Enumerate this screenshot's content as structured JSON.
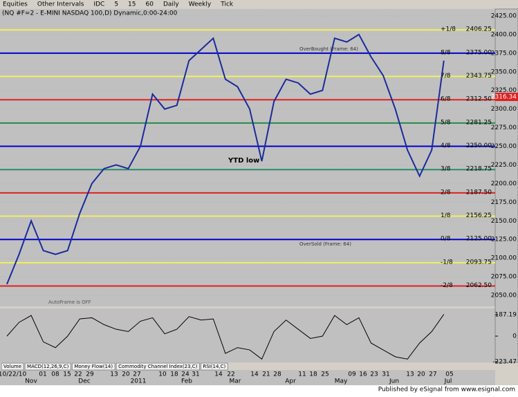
{
  "chart_data": {
    "type": "line",
    "title": "(NQ #F=2 - E-MINI NASDAQ 100,D) Dynamic,0:00-24:00",
    "toolbar": [
      "Equities",
      "Other Intervals",
      "IDC",
      "5",
      "15",
      "60",
      "Daily",
      "Weekly",
      "Tick"
    ],
    "date_labels": [
      "10/22/10",
      "01",
      "08",
      "15",
      "22",
      "29",
      "13",
      "20",
      "27",
      "10",
      "18",
      "24",
      "31",
      "14",
      "22",
      "14",
      "21",
      "28",
      "11",
      "18",
      "25",
      "09",
      "16",
      "23",
      "31",
      "13",
      "20",
      "27",
      "05"
    ],
    "month_labels": [
      "Nov",
      "Dec",
      "2011",
      "Feb",
      "Mar",
      "Apr",
      "May",
      "Jun",
      "Jul"
    ],
    "series": [
      {
        "name": "E-MINI NASDAQ 100",
        "color": "#1a2a9c",
        "values": [
          2065,
          2105,
          2150,
          2110,
          2105,
          2110,
          2160,
          2200,
          2220,
          2225,
          2220,
          2250,
          2320,
          2300,
          2305,
          2365,
          2380,
          2395,
          2340,
          2330,
          2300,
          2230,
          2310,
          2340,
          2335,
          2320,
          2325,
          2395,
          2390,
          2400,
          2370,
          2345,
          2300,
          2245,
          2210,
          2245,
          2365
        ]
      }
    ],
    "ylim": [
      2050,
      2425
    ],
    "yticks": [
      {
        "value": 2050,
        "label": "2050.00"
      },
      {
        "value": 2075,
        "label": "2075.00"
      },
      {
        "value": 2100,
        "label": "2100.00"
      },
      {
        "value": 2125,
        "label": "2125.00"
      },
      {
        "value": 2150,
        "label": "2150.00"
      },
      {
        "value": 2175,
        "label": "2175.00"
      },
      {
        "value": 2200,
        "label": "2200.00"
      },
      {
        "value": 2225,
        "label": "2225.00"
      },
      {
        "value": 2250,
        "label": "2250.00"
      },
      {
        "value": 2275,
        "label": "2275.00"
      },
      {
        "value": 2300,
        "label": "2300.00"
      },
      {
        "value": 2325,
        "label": "2325.00"
      },
      {
        "value": 2350,
        "label": "2350.00"
      },
      {
        "value": 2375,
        "label": "2375.00"
      },
      {
        "value": 2400,
        "label": "2400.00"
      },
      {
        "value": 2425,
        "label": "2425.00"
      }
    ],
    "murrey_lines": [
      {
        "name": "+1/8",
        "level": 2406.25,
        "color": "#f0f060"
      },
      {
        "name": "8/8",
        "level": {
          "value": 2375,
          "label": "2375.00"
        },
        "color": "#0000cc"
      },
      {
        "name": "7/8",
        "level": 2343.75,
        "color": "#f0f060"
      },
      {
        "name": "6/8",
        "level": {
          "value": 2312.5,
          "label": "2312.50"
        },
        "color": "#e02020"
      },
      {
        "name": "5/8",
        "level": 2281.25,
        "color": "#2a8a4a"
      },
      {
        "name": "4/8",
        "level": {
          "value": 2250,
          "label": "2250.00"
        },
        "color": "#0000cc"
      },
      {
        "name": "3/8",
        "level": 2218.75,
        "color": "#2a8a6a"
      },
      {
        "name": "2/8",
        "level": {
          "value": 2187.5,
          "label": "2187.50"
        },
        "color": "#e02020"
      },
      {
        "name": "1/8",
        "level": 2156.25,
        "color": "#f0f060"
      },
      {
        "name": "0/8",
        "level": {
          "value": 2125,
          "label": "2125.00"
        },
        "color": "#0000cc"
      },
      {
        "name": "-1/8",
        "level": 2093.75,
        "color": "#f0f060"
      },
      {
        "name": "-2/8",
        "level": {
          "value": 2062.5,
          "label": "2062.50"
        },
        "color": "#e02020"
      }
    ],
    "last_price": 2316.34,
    "annotations": [
      "YTD low",
      "OverBought (Frame: 64)",
      "OverSold (Frame: 64)",
      "AutoFrame is OFF"
    ],
    "indicator": {
      "values": [
        0,
        120,
        180,
        -50,
        -100,
        0,
        150,
        160,
        100,
        60,
        40,
        130,
        160,
        20,
        60,
        170,
        140,
        150,
        -150,
        -100,
        -120,
        -200,
        40,
        140,
        60,
        -20,
        0,
        180,
        100,
        160,
        -60,
        -120,
        -180,
        -200,
        -60,
        40,
        190
      ],
      "ylim": [
        -235,
        235
      ],
      "yticks": [
        187.19,
        0,
        -223.47
      ]
    },
    "tabs": [
      "Volume",
      "MACD(12,26,9,C)",
      "Money Flow(14)",
      "Commodity Channel Index(23,C)",
      "RSI(14,C)"
    ],
    "footer": "Published by eSignal from www.esignal.com"
  }
}
